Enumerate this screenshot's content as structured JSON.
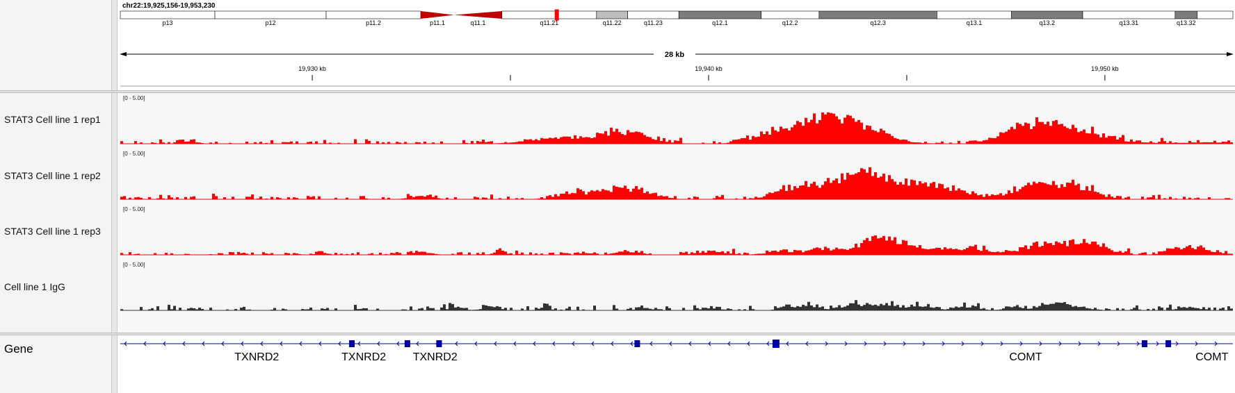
{
  "locus": "chr22:19,925,156-19,953,230",
  "ideogram": {
    "bands": [
      {
        "name": "p13",
        "start": 0,
        "end": 0.085,
        "fill": "#ffffff"
      },
      {
        "name": "p12",
        "start": 0.085,
        "end": 0.185,
        "fill": "#ffffff"
      },
      {
        "name": "p11.2",
        "start": 0.185,
        "end": 0.27,
        "fill": "#ffffff"
      },
      {
        "name": "p11.1",
        "start": 0.27,
        "end": 0.3,
        "fill": "#c00000",
        "shape": "cen-left"
      },
      {
        "name": "q11.1",
        "start": 0.3,
        "end": 0.343,
        "fill": "#c00000",
        "shape": "cen-right"
      },
      {
        "name": "q11.21",
        "start": 0.343,
        "end": 0.428,
        "fill": "#ffffff"
      },
      {
        "name": "q11.22",
        "start": 0.428,
        "end": 0.456,
        "fill": "#bdbdbd"
      },
      {
        "name": "q11.23",
        "start": 0.456,
        "end": 0.502,
        "fill": "#ffffff"
      },
      {
        "name": "q12.1",
        "start": 0.502,
        "end": 0.576,
        "fill": "#7d7d7d"
      },
      {
        "name": "q12.2",
        "start": 0.576,
        "end": 0.628,
        "fill": "#ffffff"
      },
      {
        "name": "q12.3",
        "start": 0.628,
        "end": 0.734,
        "fill": "#7d7d7d"
      },
      {
        "name": "q13.1",
        "start": 0.734,
        "end": 0.801,
        "fill": "#ffffff"
      },
      {
        "name": "q13.2",
        "start": 0.801,
        "end": 0.865,
        "fill": "#7d7d7d"
      },
      {
        "name": "q13.31",
        "start": 0.865,
        "end": 0.948,
        "fill": "#ffffff"
      },
      {
        "name": "q13.32",
        "start": 0.948,
        "end": 0.968,
        "fill": "#7d7d7d"
      },
      {
        "name": "",
        "start": 0.968,
        "end": 1.0,
        "fill": "#ffffff"
      }
    ],
    "current_region_fraction": 0.392
  },
  "ruler": {
    "span_label": "28 kb",
    "start_bp": 19925156,
    "end_bp": 19953230,
    "ticks": [
      {
        "bp": 19930000,
        "label": "19,930 kb"
      },
      {
        "bp": 19935000,
        "label": ""
      },
      {
        "bp": 19940000,
        "label": "19,940 kb"
      },
      {
        "bp": 19945000,
        "label": ""
      },
      {
        "bp": 19950000,
        "label": "19,950 kb"
      }
    ]
  },
  "tracks": [
    {
      "name": "STAT3 Cell line 1 rep1",
      "range_label": "[0 - 5.00]",
      "color": "#ff0000",
      "peaks": [
        [
          0.06,
          0.15,
          0.35
        ],
        [
          0.39,
          0.5,
          0.7
        ],
        [
          0.45,
          0.44,
          1.6
        ],
        [
          0.61,
          0.49,
          1.4
        ],
        [
          0.66,
          0.5,
          1.9
        ],
        [
          0.64,
          0.48,
          1.2
        ],
        [
          0.625,
          0.45,
          0.7
        ],
        [
          0.58,
          0.35,
          0.7
        ],
        [
          0.82,
          0.44,
          1.5
        ],
        [
          0.845,
          0.5,
          1.3
        ],
        [
          0.8,
          0.3,
          0.6
        ],
        [
          0.875,
          0.4,
          0.7
        ],
        [
          0.95,
          0.6,
          0.15
        ],
        [
          1.0,
          0.35,
          0.2
        ]
      ]
    },
    {
      "name": "STAT3 Cell line 1 rep2",
      "range_label": "[0 - 5.00]",
      "color": "#ff0000",
      "peaks": [
        [
          0.27,
          0.2,
          0.5
        ],
        [
          0.405,
          0.3,
          0.6
        ],
        [
          0.45,
          0.42,
          1.5
        ],
        [
          0.61,
          0.35,
          0.6
        ],
        [
          0.635,
          0.43,
          1.3
        ],
        [
          0.6,
          0.3,
          0.7
        ],
        [
          0.655,
          0.3,
          0.9
        ],
        [
          0.665,
          0.3,
          0.8
        ],
        [
          0.68,
          0.5,
          1.5
        ],
        [
          0.7,
          0.46,
          1.2
        ],
        [
          0.73,
          0.33,
          0.9
        ],
        [
          0.75,
          0.3,
          0.8
        ],
        [
          0.82,
          0.42,
          1.4
        ],
        [
          0.845,
          0.46,
          1.3
        ],
        [
          0.865,
          0.2,
          0.5
        ]
      ]
    },
    {
      "name": "STAT3 Cell line 1 rep3",
      "range_label": "[0 - 5.00]",
      "color": "#ff0000",
      "peaks": [
        [
          0.18,
          0.1,
          0.35
        ],
        [
          0.27,
          0.16,
          0.4
        ],
        [
          0.34,
          0.12,
          0.4
        ],
        [
          0.455,
          0.2,
          0.5
        ],
        [
          0.53,
          0.27,
          0.4
        ],
        [
          0.59,
          0.25,
          0.4
        ],
        [
          0.63,
          0.25,
          0.8
        ],
        [
          0.68,
          0.37,
          0.8
        ],
        [
          0.69,
          0.43,
          1.3
        ],
        [
          0.68,
          0.3,
          0.5
        ],
        [
          0.74,
          0.35,
          0.7
        ],
        [
          0.77,
          0.3,
          0.6
        ],
        [
          0.82,
          0.3,
          0.7
        ],
        [
          0.845,
          0.42,
          1.1
        ],
        [
          0.875,
          0.25,
          0.7
        ],
        [
          0.87,
          0.35,
          0.5
        ],
        [
          0.955,
          0.25,
          0.7
        ],
        [
          0.97,
          0.35,
          0.5
        ]
      ]
    },
    {
      "name": "Cell line 1 IgG",
      "range_label": "[0 - 5.00]",
      "color": "#333333",
      "peaks": [
        [
          0.3,
          0.14,
          0.4
        ],
        [
          0.33,
          0.12,
          0.5
        ],
        [
          0.38,
          0.1,
          0.5
        ],
        [
          0.47,
          0.12,
          0.35
        ],
        [
          0.53,
          0.17,
          0.3
        ],
        [
          0.6,
          0.17,
          0.6
        ],
        [
          0.62,
          0.14,
          0.6
        ],
        [
          0.66,
          0.3,
          0.7
        ],
        [
          0.69,
          0.28,
          0.5
        ],
        [
          0.72,
          0.2,
          0.5
        ],
        [
          0.76,
          0.2,
          0.5
        ],
        [
          0.8,
          0.14,
          0.5
        ],
        [
          0.835,
          0.25,
          0.5
        ],
        [
          0.85,
          0.3,
          0.6
        ],
        [
          0.96,
          0.2,
          0.4
        ]
      ]
    }
  ],
  "gene_track": {
    "label": "Gene",
    "color": "#0000a0",
    "genes": [
      {
        "name": "TXNRD2",
        "bp": 19928600
      },
      {
        "name": "TXNRD2",
        "bp": 19931300
      },
      {
        "name": "TXNRD2",
        "bp": 19933100
      },
      {
        "name": "COMT",
        "bp": 19948000
      },
      {
        "name": "COMT",
        "bp": 19952700
      }
    ],
    "exons_bp": [
      19931000,
      19932400,
      19933200,
      19938200,
      19941700,
      19951000,
      19951600
    ],
    "strand_split_bp": 19942500
  }
}
